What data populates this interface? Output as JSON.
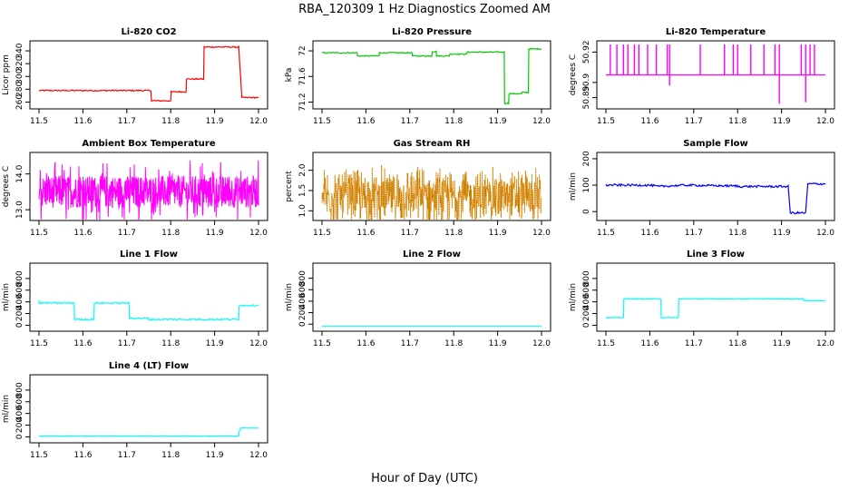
{
  "figure": {
    "title": "RBA_120309  1 Hz Diagnostics Zoomed AM",
    "xlabel": "Hour of Day (UTC)"
  },
  "chart_data": [
    {
      "type": "line",
      "title": "Li-820 CO2",
      "ylabel": "Licor ppm",
      "color": "#ff0000",
      "xlim": [
        11.5,
        12.0
      ],
      "xticks": [
        "11.5",
        "11.6",
        "11.7",
        "11.8",
        "11.9",
        "12.0"
      ],
      "yticks": [
        260,
        280,
        300,
        320,
        340
      ],
      "ylim": [
        255,
        350
      ],
      "series": [
        {
          "x": [
            11.5,
            11.755,
            11.756,
            11.8,
            11.801,
            11.835,
            11.836,
            11.875,
            11.876,
            11.955,
            11.962,
            12.0
          ],
          "y": [
            278,
            278,
            262,
            262,
            276,
            276,
            296,
            296,
            346,
            346,
            267,
            267
          ]
        }
      ],
      "noise": 1
    },
    {
      "type": "line",
      "title": "Li-820 Pressure",
      "ylabel": "kPa",
      "color": "#00cc00",
      "xlim": [
        11.5,
        12.0
      ],
      "xticks": [
        "11.5",
        "11.6",
        "11.7",
        "11.8",
        "11.9",
        "12.0"
      ],
      "yticks": [
        71.2,
        71.6,
        72.0
      ],
      "ylim": [
        71.15,
        72.1
      ],
      "series": [
        {
          "x": [
            11.5,
            11.58,
            11.581,
            11.63,
            11.631,
            11.705,
            11.706,
            11.75,
            11.751,
            11.76,
            11.761,
            11.79,
            11.791,
            11.83,
            11.831,
            11.915,
            11.916,
            11.925,
            11.926,
            11.955,
            11.956,
            11.97,
            11.971,
            12.0
          ],
          "y": [
            71.97,
            71.97,
            71.92,
            71.92,
            71.97,
            71.97,
            71.92,
            71.92,
            71.99,
            71.99,
            71.92,
            71.92,
            71.95,
            71.95,
            71.98,
            71.98,
            71.18,
            71.18,
            71.33,
            71.33,
            71.35,
            71.35,
            72.03,
            72.03
          ]
        }
      ],
      "noise": 0.008
    },
    {
      "type": "line",
      "title": "Li-820 Temperature",
      "ylabel": "degrees C",
      "color": "#ff00ff",
      "xlim": [
        11.5,
        12.0
      ],
      "xticks": [
        "11.5",
        "11.6",
        "11.7",
        "11.8",
        "11.9",
        "12.0"
      ],
      "yticks": [
        50.89,
        50.9,
        50.92
      ],
      "ytick_labels": [
        "50.89",
        "50.9",
        "50.92"
      ],
      "ylim": [
        50.885,
        50.925
      ],
      "baseline": 50.905,
      "spikes_up": [
        11.51,
        11.525,
        11.54,
        11.55,
        11.565,
        11.575,
        11.595,
        11.615,
        11.64,
        11.645,
        11.715,
        11.77,
        11.79,
        11.8,
        11.83,
        11.86,
        11.885,
        11.895,
        11.945,
        11.955,
        11.965,
        11.975
      ],
      "spikes_down": [
        [
          11.645,
          50.898
        ],
        [
          11.895,
          50.886
        ],
        [
          11.955,
          50.887
        ]
      ],
      "spike_top": 50.925
    },
    {
      "type": "line",
      "title": "Ambient Box Temperature",
      "ylabel": "degrees C",
      "color": "#ff00ff",
      "xlim": [
        11.5,
        12.0
      ],
      "xticks": [
        "11.5",
        "11.6",
        "11.7",
        "11.8",
        "11.9",
        "12.0"
      ],
      "yticks": [
        13.0,
        14.0
      ],
      "ytick_labels": [
        "13.0",
        "14.0"
      ],
      "ylim": [
        12.8,
        14.5
      ],
      "center": 13.5,
      "spread": 0.45
    },
    {
      "type": "scatter",
      "title": "Gas Stream RH",
      "ylabel": "percent",
      "color": "#ff9900",
      "color2": "#996600",
      "xlim": [
        11.5,
        12.0
      ],
      "xticks": [
        "11.5",
        "11.6",
        "11.7",
        "11.8",
        "11.9",
        "12.0"
      ],
      "yticks": [
        1.0,
        1.5,
        2.0
      ],
      "ytick_labels": [
        "1.0",
        "1.5",
        "2.0"
      ],
      "ylim": [
        0.85,
        2.35
      ],
      "center": 1.35,
      "spread": 0.45
    },
    {
      "type": "line",
      "title": "Sample Flow",
      "ylabel": "ml/min",
      "color": "#0000ff",
      "xlim": [
        11.5,
        12.0
      ],
      "xticks": [
        "11.5",
        "11.6",
        "11.7",
        "11.8",
        "11.9",
        "12.0"
      ],
      "yticks": [
        0,
        100,
        200
      ],
      "ylim": [
        -20,
        210
      ],
      "series": [
        {
          "x": [
            11.5,
            11.6,
            11.62,
            11.68,
            11.75,
            11.8,
            11.8,
            11.915,
            11.92,
            11.955,
            11.96,
            12.0
          ],
          "y": [
            100,
            100,
            95,
            100,
            98,
            97,
            95,
            95,
            -5,
            -5,
            105,
            105
          ]
        }
      ],
      "noise": 4
    },
    {
      "type": "line",
      "title": "Line 1 Flow",
      "ylabel": "ml/min",
      "color": "#00ffff",
      "xlim": [
        11.5,
        12.0
      ],
      "xticks": [
        "11.5",
        "11.6",
        "11.7",
        "11.8",
        "11.9",
        "12.0"
      ],
      "yticks": [
        0,
        200,
        400,
        600,
        800
      ],
      "ylim": [
        -40,
        1000
      ],
      "series": [
        {
          "x": [
            11.5,
            11.5,
            11.58,
            11.581,
            11.625,
            11.626,
            11.705,
            11.706,
            11.75,
            11.75,
            11.955,
            11.956,
            12.0
          ],
          "y": [
            430,
            380,
            380,
            100,
            100,
            380,
            380,
            120,
            120,
            100,
            100,
            340,
            340
          ]
        }
      ],
      "noise": 12
    },
    {
      "type": "line",
      "title": "Line 2 Flow",
      "ylabel": "ml/min",
      "color": "#00ffff",
      "xlim": [
        11.5,
        12.0
      ],
      "xticks": [
        "11.5",
        "11.6",
        "11.7",
        "11.8",
        "11.9",
        "12.0"
      ],
      "yticks": [
        0,
        200,
        400,
        600,
        800
      ],
      "ylim": [
        -60,
        1000
      ],
      "series": [
        {
          "x": [
            11.5,
            12.0
          ],
          "y": [
            -40,
            -40
          ]
        }
      ],
      "noise": 0
    },
    {
      "type": "line",
      "title": "Line 3 Flow",
      "ylabel": "ml/min",
      "color": "#00ffff",
      "xlim": [
        11.5,
        12.0
      ],
      "xticks": [
        "11.5",
        "11.6",
        "11.7",
        "11.8",
        "11.9",
        "12.0"
      ],
      "yticks": [
        0,
        200,
        400,
        600,
        800
      ],
      "ylim": [
        -40,
        1000
      ],
      "series": [
        {
          "x": [
            11.5,
            11.54,
            11.541,
            11.625,
            11.626,
            11.665,
            11.666,
            11.95,
            11.951,
            12.0
          ],
          "y": [
            130,
            130,
            450,
            450,
            130,
            130,
            450,
            450,
            420,
            420
          ]
        }
      ],
      "noise": 6
    },
    {
      "type": "line",
      "title": "Line 4 (LT) Flow",
      "ylabel": "ml/min",
      "color": "#00ffff",
      "xlim": [
        11.5,
        12.0
      ],
      "xticks": [
        "11.5",
        "11.6",
        "11.7",
        "11.8",
        "11.9",
        "12.0"
      ],
      "yticks": [
        0,
        200,
        400,
        600,
        800
      ],
      "ylim": [
        -40,
        1000
      ],
      "series": [
        {
          "x": [
            11.5,
            11.955,
            11.956,
            11.96,
            12.0
          ],
          "y": [
            15,
            15,
            90,
            150,
            150
          ]
        }
      ],
      "noise": 3
    }
  ]
}
